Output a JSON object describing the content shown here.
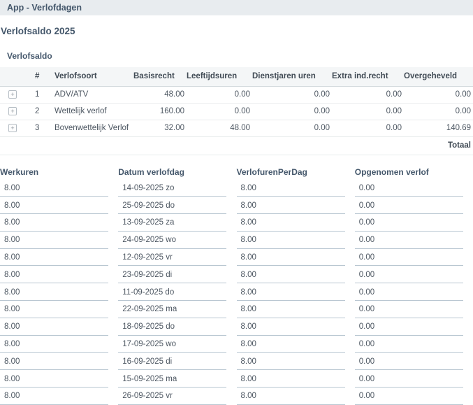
{
  "header": {
    "title": "App - Verlofdagen"
  },
  "page_title": "Verlofsaldo 2025",
  "saldo": {
    "label": "Verlofsaldo",
    "columns": {
      "num": "#",
      "verlofsoort": "Verlofsoort",
      "basisrecht": "Basisrecht",
      "leeftijdsuren": "Leeftijdsuren",
      "dienstjaren_uren": "Dienstjaren uren",
      "extra_ind_recht": "Extra ind.recht",
      "overgeheveld": "Overgeheveld"
    },
    "rows": [
      {
        "num": "1",
        "verlofsoort": "ADV/ATV",
        "basisrecht": "48.00",
        "leeftijdsuren": "0.00",
        "dienstjaren_uren": "0.00",
        "extra_ind_recht": "0.00",
        "overgeheveld": "0.00"
      },
      {
        "num": "2",
        "verlofsoort": "Wettelijk verlof",
        "basisrecht": "160.00",
        "leeftijdsuren": "0.00",
        "dienstjaren_uren": "0.00",
        "extra_ind_recht": "0.00",
        "overgeheveld": "0.00"
      },
      {
        "num": "3",
        "verlofsoort": "Bovenwettelijk Verlof",
        "basisrecht": "32.00",
        "leeftijdsuren": "48.00",
        "dienstjaren_uren": "0.00",
        "extra_ind_recht": "0.00",
        "overgeheveld": "140.69"
      }
    ],
    "footer_label": "Totaal"
  },
  "verlofdagen": {
    "columns": {
      "werkuren": "Werkuren",
      "datum": "Datum verlofdag",
      "verlofuren_per_dag": "VerlofurenPerDag",
      "opgenomen_verlof": "Opgenomen verlof"
    },
    "rows": [
      {
        "werkuren": "8.00",
        "datum": "14-09-2025 zo",
        "verlofuren_per_dag": "8.00",
        "opgenomen_verlof": "0.00"
      },
      {
        "werkuren": "8.00",
        "datum": "25-09-2025 do",
        "verlofuren_per_dag": "8.00",
        "opgenomen_verlof": "0.00"
      },
      {
        "werkuren": "8.00",
        "datum": "13-09-2025 za",
        "verlofuren_per_dag": "8.00",
        "opgenomen_verlof": "0.00"
      },
      {
        "werkuren": "8.00",
        "datum": "24-09-2025 wo",
        "verlofuren_per_dag": "8.00",
        "opgenomen_verlof": "0.00"
      },
      {
        "werkuren": "8.00",
        "datum": "12-09-2025 vr",
        "verlofuren_per_dag": "8.00",
        "opgenomen_verlof": "0.00"
      },
      {
        "werkuren": "8.00",
        "datum": "23-09-2025 di",
        "verlofuren_per_dag": "8.00",
        "opgenomen_verlof": "0.00"
      },
      {
        "werkuren": "8.00",
        "datum": "11-09-2025 do",
        "verlofuren_per_dag": "8.00",
        "opgenomen_verlof": "0.00"
      },
      {
        "werkuren": "8.00",
        "datum": "22-09-2025 ma",
        "verlofuren_per_dag": "8.00",
        "opgenomen_verlof": "0.00"
      },
      {
        "werkuren": "8.00",
        "datum": "18-09-2025 do",
        "verlofuren_per_dag": "8.00",
        "opgenomen_verlof": "0.00"
      },
      {
        "werkuren": "8.00",
        "datum": "17-09-2025 wo",
        "verlofuren_per_dag": "8.00",
        "opgenomen_verlof": "0.00"
      },
      {
        "werkuren": "8.00",
        "datum": "16-09-2025 di",
        "verlofuren_per_dag": "8.00",
        "opgenomen_verlof": "0.00"
      },
      {
        "werkuren": "8.00",
        "datum": "15-09-2025 ma",
        "verlofuren_per_dag": "8.00",
        "opgenomen_verlof": "0.00"
      },
      {
        "werkuren": "8.00",
        "datum": "26-09-2025 vr",
        "verlofuren_per_dag": "8.00",
        "opgenomen_verlof": "0.00"
      }
    ]
  },
  "icons": {
    "expand_glyph": "+"
  },
  "colors": {
    "topbar_bg": "#e8ecef",
    "heading_text": "#44576b",
    "table_header_bg": "#f4f6f7",
    "table_header_text": "#414b55",
    "cell_text": "#4c5661",
    "field_underline": "#b8c6d1"
  }
}
